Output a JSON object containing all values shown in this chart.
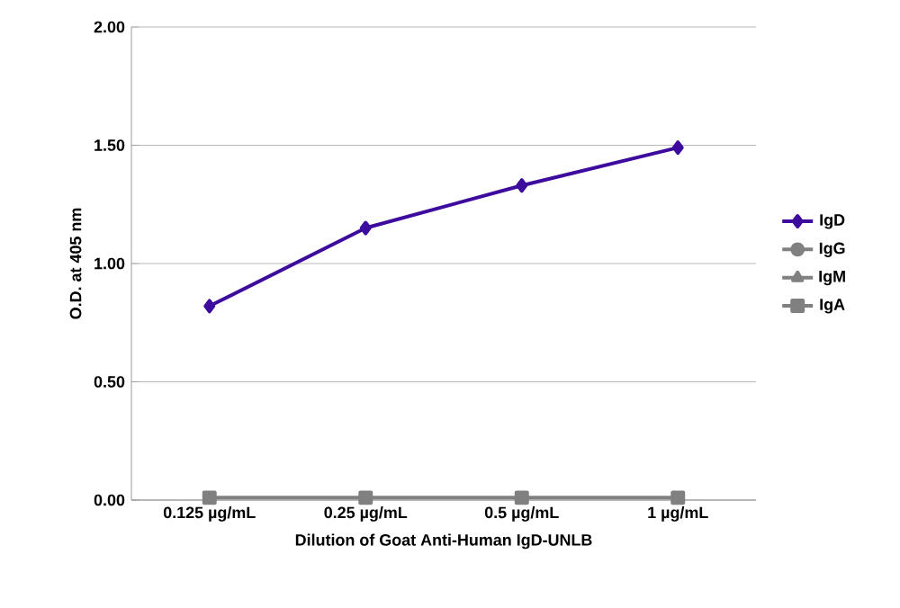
{
  "chart_data": {
    "type": "line",
    "xlabel": "Dilution of Goat Anti-Human IgD-UNLB",
    "ylabel": "O.D. at 405 nm",
    "categories": [
      "0.125 µg/mL",
      "0.25 µg/mL",
      "0.5 µg/mL",
      "1 µg/mL"
    ],
    "series": [
      {
        "name": "IgD",
        "color": "#3d0c9e",
        "marker": "diamond",
        "values": [
          0.82,
          1.15,
          1.33,
          1.49
        ]
      },
      {
        "name": "IgG",
        "color": "#808080",
        "marker": "circle",
        "values": [
          null,
          null,
          null,
          null
        ]
      },
      {
        "name": "IgM",
        "color": "#808080",
        "marker": "triangle",
        "values": [
          null,
          null,
          null,
          null
        ]
      },
      {
        "name": "IgA",
        "color": "#808080",
        "marker": "square",
        "values": [
          0.01,
          0.01,
          0.01,
          0.01
        ]
      }
    ],
    "ylim": [
      0,
      2
    ],
    "yticks": [
      {
        "value": 0,
        "label": "0.00"
      },
      {
        "value": 0.5,
        "label": "0.50"
      },
      {
        "value": 1,
        "label": "1.00"
      },
      {
        "value": 1.5,
        "label": "1.50"
      },
      {
        "value": 2,
        "label": "2.00"
      }
    ],
    "grid": "y",
    "legend": "right",
    "line_style": "solid"
  }
}
